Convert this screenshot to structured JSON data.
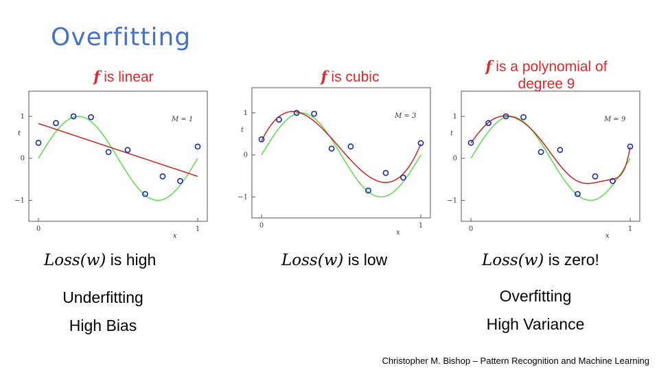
{
  "title": "Overfitting",
  "colors": {
    "title": "#4472c4",
    "heading": "#e3262b",
    "target_curve": "#66dd55",
    "fit_curve": "#cc2222",
    "points": "#1a2da8"
  },
  "panels": [
    {
      "heading_prefix": "f",
      "heading_text": " is linear",
      "heading_line2": "",
      "loss_expr": "Loss(w)",
      "loss_text": " is high",
      "verdict_line1": "Underfitting",
      "verdict_line2": "High Bias"
    },
    {
      "heading_prefix": "f",
      "heading_text": " is cubic",
      "heading_line2": "",
      "loss_expr": "Loss(w)",
      "loss_text": " is low",
      "verdict_line1": "",
      "verdict_line2": ""
    },
    {
      "heading_prefix": "f",
      "heading_text": " is a polynomial of",
      "heading_line2": "degree 9",
      "loss_expr": "Loss(w)",
      "loss_text": " is zero!",
      "verdict_line1": "Overfitting",
      "verdict_line2": "High Variance"
    }
  ],
  "credit": "Christopher M. Bishop – Pattern Recognition and Machine Learning",
  "chart_data": [
    {
      "type": "scatter",
      "annotation": "M = 1",
      "xlabel": "x",
      "ylabel": "t",
      "xlim": [
        0,
        1
      ],
      "ylim": [
        -1.5,
        1.6
      ],
      "x_ticks": [
        0,
        1
      ],
      "y_ticks": [
        -1,
        0,
        1
      ],
      "fit_degree": 1,
      "points": [
        [
          0.0,
          0.37
        ],
        [
          0.11,
          0.84
        ],
        [
          0.22,
          1.0
        ],
        [
          0.33,
          0.98
        ],
        [
          0.44,
          0.15
        ],
        [
          0.56,
          0.2
        ],
        [
          0.67,
          -0.85
        ],
        [
          0.78,
          -0.43
        ],
        [
          0.89,
          -0.54
        ],
        [
          1.0,
          0.28
        ]
      ]
    },
    {
      "type": "scatter",
      "annotation": "M = 3",
      "xlabel": "x",
      "ylabel": "t",
      "xlim": [
        0,
        1
      ],
      "ylim": [
        -1.5,
        1.6
      ],
      "x_ticks": [
        0,
        1
      ],
      "y_ticks": [
        -1,
        0,
        1
      ],
      "fit_degree": 3,
      "points": [
        [
          0.0,
          0.37
        ],
        [
          0.11,
          0.84
        ],
        [
          0.22,
          1.0
        ],
        [
          0.33,
          0.98
        ],
        [
          0.44,
          0.15
        ],
        [
          0.56,
          0.2
        ],
        [
          0.67,
          -0.85
        ],
        [
          0.78,
          -0.43
        ],
        [
          0.89,
          -0.54
        ],
        [
          1.0,
          0.28
        ]
      ]
    },
    {
      "type": "scatter",
      "annotation": "M = 9",
      "xlabel": "x",
      "ylabel": "t",
      "xlim": [
        0,
        1
      ],
      "ylim": [
        -1.5,
        1.6
      ],
      "x_ticks": [
        0,
        1
      ],
      "y_ticks": [
        -1,
        0,
        1
      ],
      "fit_degree": 9,
      "points": [
        [
          0.0,
          0.37
        ],
        [
          0.11,
          0.84
        ],
        [
          0.22,
          1.0
        ],
        [
          0.33,
          0.98
        ],
        [
          0.44,
          0.15
        ],
        [
          0.56,
          0.2
        ],
        [
          0.67,
          -0.85
        ],
        [
          0.78,
          -0.43
        ],
        [
          0.89,
          -0.54
        ],
        [
          1.0,
          0.28
        ]
      ]
    }
  ]
}
